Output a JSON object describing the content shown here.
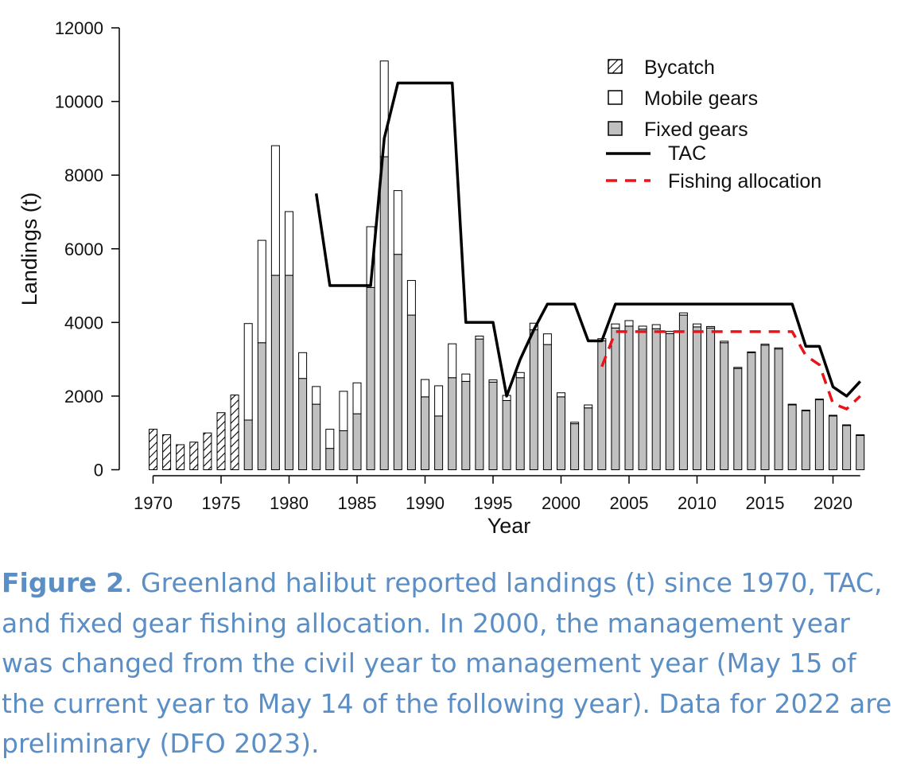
{
  "chart_data": {
    "type": "bar",
    "xlabel": "Year",
    "ylabel": "Landings (t)",
    "ylim": [
      0,
      12000
    ],
    "yticks": [
      0,
      2000,
      4000,
      6000,
      8000,
      10000,
      12000
    ],
    "xticks": [
      1970,
      1975,
      1980,
      1985,
      1990,
      1995,
      2000,
      2005,
      2010,
      2015,
      2020
    ],
    "legend_position": "top-right",
    "legend": {
      "bycatch": "Bycatch",
      "mobile": "Mobile gears",
      "fixed": "Fixed gears",
      "tac": "TAC",
      "allocation": "Fishing allocation"
    },
    "colors": {
      "fixed": "#c0c0c0",
      "mobile": "#ffffff",
      "tac": "#000000",
      "allocation": "#e8141a"
    },
    "bars": [
      {
        "year": 1970,
        "bycatch": 1100
      },
      {
        "year": 1971,
        "bycatch": 950
      },
      {
        "year": 1972,
        "bycatch": 680
      },
      {
        "year": 1973,
        "bycatch": 750
      },
      {
        "year": 1974,
        "bycatch": 1000
      },
      {
        "year": 1975,
        "bycatch": 1550
      },
      {
        "year": 1976,
        "bycatch": 2030
      },
      {
        "year": 1977,
        "fixed": 1350,
        "mobile": 2620
      },
      {
        "year": 1978,
        "fixed": 3450,
        "mobile": 2780
      },
      {
        "year": 1979,
        "fixed": 5280,
        "mobile": 3520
      },
      {
        "year": 1980,
        "fixed": 5280,
        "mobile": 1730
      },
      {
        "year": 1981,
        "fixed": 2480,
        "mobile": 700
      },
      {
        "year": 1982,
        "fixed": 1780,
        "mobile": 480
      },
      {
        "year": 1983,
        "fixed": 580,
        "mobile": 520
      },
      {
        "year": 1984,
        "fixed": 1060,
        "mobile": 1070
      },
      {
        "year": 1985,
        "fixed": 1520,
        "mobile": 840
      },
      {
        "year": 1986,
        "fixed": 4950,
        "mobile": 1650
      },
      {
        "year": 1987,
        "fixed": 8500,
        "mobile": 2600
      },
      {
        "year": 1988,
        "fixed": 5850,
        "mobile": 1730
      },
      {
        "year": 1989,
        "fixed": 4200,
        "mobile": 940
      },
      {
        "year": 1990,
        "fixed": 1980,
        "mobile": 470
      },
      {
        "year": 1991,
        "fixed": 1460,
        "mobile": 820
      },
      {
        "year": 1992,
        "fixed": 2500,
        "mobile": 920
      },
      {
        "year": 1993,
        "fixed": 2400,
        "mobile": 200
      },
      {
        "year": 1994,
        "fixed": 3550,
        "mobile": 80
      },
      {
        "year": 1995,
        "fixed": 2380,
        "mobile": 60
      },
      {
        "year": 1996,
        "fixed": 1880,
        "mobile": 140
      },
      {
        "year": 1997,
        "fixed": 2500,
        "mobile": 140
      },
      {
        "year": 1998,
        "fixed": 3800,
        "mobile": 180
      },
      {
        "year": 1999,
        "fixed": 3400,
        "mobile": 290
      },
      {
        "year": 2000,
        "fixed": 1980,
        "mobile": 110
      },
      {
        "year": 2001,
        "fixed": 1250,
        "mobile": 40
      },
      {
        "year": 2002,
        "fixed": 1680,
        "mobile": 80
      },
      {
        "year": 2003,
        "fixed": 3500,
        "mobile": 60
      },
      {
        "year": 2004,
        "fixed": 3850,
        "mobile": 110
      },
      {
        "year": 2005,
        "fixed": 3900,
        "mobile": 150
      },
      {
        "year": 2006,
        "fixed": 3820,
        "mobile": 80
      },
      {
        "year": 2007,
        "fixed": 3830,
        "mobile": 110
      },
      {
        "year": 2008,
        "fixed": 3700,
        "mobile": 60
      },
      {
        "year": 2009,
        "fixed": 4200,
        "mobile": 60
      },
      {
        "year": 2010,
        "fixed": 3880,
        "mobile": 80
      },
      {
        "year": 2011,
        "fixed": 3850,
        "mobile": 40
      },
      {
        "year": 2012,
        "fixed": 3450,
        "mobile": 40
      },
      {
        "year": 2013,
        "fixed": 2750,
        "mobile": 30
      },
      {
        "year": 2014,
        "fixed": 3180,
        "mobile": 20
      },
      {
        "year": 2015,
        "fixed": 3380,
        "mobile": 30
      },
      {
        "year": 2016,
        "fixed": 3280,
        "mobile": 30
      },
      {
        "year": 2017,
        "fixed": 1760,
        "mobile": 20
      },
      {
        "year": 2018,
        "fixed": 1600,
        "mobile": 20
      },
      {
        "year": 2019,
        "fixed": 1900,
        "mobile": 20
      },
      {
        "year": 2020,
        "fixed": 1460,
        "mobile": 20
      },
      {
        "year": 2021,
        "fixed": 1200,
        "mobile": 20
      },
      {
        "year": 2022,
        "fixed": 930,
        "mobile": 20
      }
    ],
    "tac": [
      [
        1982,
        7500
      ],
      [
        1983,
        5000
      ],
      [
        1984,
        5000
      ],
      [
        1985,
        5000
      ],
      [
        1986,
        5000
      ],
      [
        1987,
        9000
      ],
      [
        1988,
        10500
      ],
      [
        1989,
        10500
      ],
      [
        1990,
        10500
      ],
      [
        1991,
        10500
      ],
      [
        1992,
        10500
      ],
      [
        1993,
        4000
      ],
      [
        1994,
        4000
      ],
      [
        1995,
        4000
      ],
      [
        1996,
        2000
      ],
      [
        1997,
        3000
      ],
      [
        1998,
        3800
      ],
      [
        1999,
        4500
      ],
      [
        2000,
        4500
      ],
      [
        2001,
        4500
      ],
      [
        2002,
        3500
      ],
      [
        2003,
        3500
      ],
      [
        2004,
        4500
      ],
      [
        2005,
        4500
      ],
      [
        2006,
        4500
      ],
      [
        2007,
        4500
      ],
      [
        2008,
        4500
      ],
      [
        2009,
        4500
      ],
      [
        2010,
        4500
      ],
      [
        2011,
        4500
      ],
      [
        2012,
        4500
      ],
      [
        2013,
        4500
      ],
      [
        2014,
        4500
      ],
      [
        2015,
        4500
      ],
      [
        2016,
        4500
      ],
      [
        2017,
        4500
      ],
      [
        2018,
        3350
      ],
      [
        2019,
        3350
      ],
      [
        2020,
        2250
      ],
      [
        2021,
        2000
      ],
      [
        2022,
        2400
      ]
    ],
    "allocation": [
      [
        2003,
        2800
      ],
      [
        2004,
        3750
      ],
      [
        2005,
        3750
      ],
      [
        2006,
        3750
      ],
      [
        2007,
        3750
      ],
      [
        2008,
        3750
      ],
      [
        2009,
        3750
      ],
      [
        2010,
        3750
      ],
      [
        2011,
        3750
      ],
      [
        2012,
        3750
      ],
      [
        2013,
        3750
      ],
      [
        2014,
        3750
      ],
      [
        2015,
        3750
      ],
      [
        2016,
        3750
      ],
      [
        2017,
        3750
      ],
      [
        2018,
        3100
      ],
      [
        2019,
        2850
      ],
      [
        2020,
        1800
      ],
      [
        2021,
        1650
      ],
      [
        2022,
        2000
      ]
    ]
  },
  "caption": {
    "label": "Figure 2",
    "text": ". Greenland halibut reported landings (t) since 1970, TAC, and fixed gear fishing allocation. In 2000, the management year was changed from the civil year to management year (May 15 of the current year to May 14 of the following year). Data for 2022 are preliminary (DFO 2023)."
  }
}
